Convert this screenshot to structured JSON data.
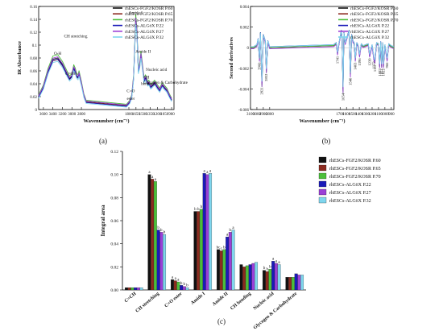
{
  "colors": {
    "P60": "#111111",
    "P65": "#8b2a1f",
    "P70": "#4bbf3a",
    "AP22": "#1a1ab8",
    "AP27": "#9b3fd6",
    "AP32": "#7fd6ee"
  },
  "chart_data": [
    {
      "panel": "(a)",
      "type": "line",
      "xlabel": "Wavenumber (cm⁻¹)",
      "ylabel": "IR Absorbance",
      "xlim": [
        3700,
        850
      ],
      "ylim": [
        0,
        0.16
      ],
      "x_ticks": [
        3600,
        3400,
        3200,
        3000,
        2800,
        1800,
        1650,
        1500,
        1350,
        1200,
        1050,
        900
      ],
      "y_ticks": [
        0,
        0.02,
        0.04,
        0.06,
        0.08,
        0.1,
        0.12,
        0.14,
        0.16
      ],
      "y_tick_labels": [
        "0",
        "0.02",
        "0.04",
        "0.06",
        "0.08",
        "0.1",
        "0.12",
        "0.14",
        "0.16"
      ],
      "legend": [
        "rhESCs-FGF2/KOSR P.60",
        "rhESCs-FGF2/KOSR P.65",
        "rhESCs-FGF2/KOSR P.70",
        "rhESCs-ALGöX P.22",
        "rhESCs-ALGöX P.27",
        "rhESCs-ALGöX P.32"
      ],
      "annotations": [
        {
          "text": "O-H",
          "x": 3300,
          "y": 0.085
        },
        {
          "text": "CH stretching",
          "x": 2920,
          "y": 0.112
        },
        {
          "text": "C=OH",
          "x": 3020,
          "y": 0.054
        },
        {
          "text": "C=O",
          "x": 1760,
          "y": 0.027
        },
        {
          "text": "ester",
          "x": 1760,
          "y": 0.015
        },
        {
          "text": "Amide I",
          "x": 1660,
          "y": 0.148
        },
        {
          "text": "Amide II",
          "x": 1500,
          "y": 0.088
        },
        {
          "text": "CH",
          "x": 1430,
          "y": 0.048
        },
        {
          "text": "bending",
          "x": 1400,
          "y": 0.038
        },
        {
          "text": "Nucleic acid",
          "x": 1220,
          "y": 0.06
        },
        {
          "text": "Glycogen & Carbohydrate",
          "x": 1030,
          "y": 0.04
        }
      ],
      "series_shape": {
        "x": [
          3700,
          3600,
          3500,
          3400,
          3300,
          3200,
          3100,
          3050,
          3000,
          2960,
          2930,
          2900,
          2870,
          2850,
          2800,
          2750,
          2700,
          1850,
          1780,
          1740,
          1700,
          1680,
          1655,
          1630,
          1600,
          1570,
          1545,
          1520,
          1480,
          1450,
          1400,
          1380,
          1340,
          1300,
          1260,
          1240,
          1200,
          1150,
          1100,
          1080,
          1050,
          1000,
          950,
          900
        ],
        "y": [
          0.02,
          0.035,
          0.06,
          0.078,
          0.08,
          0.07,
          0.055,
          0.048,
          0.052,
          0.065,
          0.06,
          0.052,
          0.05,
          0.056,
          0.04,
          0.022,
          0.012,
          0.006,
          0.012,
          0.02,
          0.05,
          0.09,
          0.14,
          0.12,
          0.06,
          0.07,
          0.085,
          0.07,
          0.045,
          0.05,
          0.04,
          0.042,
          0.035,
          0.038,
          0.042,
          0.04,
          0.035,
          0.03,
          0.038,
          0.037,
          0.034,
          0.03,
          0.022,
          0.015
        ]
      }
    },
    {
      "panel": "(b)",
      "type": "line",
      "xlabel": "Wavenumber (cm⁻¹)",
      "ylabel": "Second derivatives",
      "xlim": [
        3100,
        860
      ],
      "ylim": [
        -0.006,
        0.004
      ],
      "x_ticks": [
        3100,
        3000,
        2900,
        2800,
        1700,
        1600,
        1500,
        1400,
        1300,
        1200,
        1100,
        1000,
        900
      ],
      "y_ticks": [
        -0.006,
        -0.004,
        -0.002,
        0,
        0.002,
        0.004
      ],
      "y_tick_labels": [
        "-0.006",
        "-0.004",
        "-0.002",
        "0",
        "0.002",
        "0.004"
      ],
      "legend": [
        "rhESCs-FGF2/KOSR P.60",
        "rhESCs-FGF2/KOSR P.65",
        "rhESCs-FGF2/KOSR P.70",
        "rhESCs-ALGöX P.22",
        "rhESCs-ALGöX P.27",
        "rhESCs-ALGöX P.32"
      ],
      "peak_labels": [
        {
          "text": "2960",
          "x": 2960,
          "y": -0.0012
        },
        {
          "text": "2921",
          "x": 2921,
          "y": -0.0036
        },
        {
          "text": "2852",
          "x": 2852,
          "y": -0.0023
        },
        {
          "text": "1741",
          "x": 1741,
          "y": -0.0006
        },
        {
          "text": "1654",
          "x": 1654,
          "y": -0.0042
        },
        {
          "text": "1540",
          "x": 1540,
          "y": -0.0027
        },
        {
          "text": "1463",
          "x": 1463,
          "y": -0.0012
        },
        {
          "text": "1396",
          "x": 1396,
          "y": -0.0008
        },
        {
          "text": "1239",
          "x": 1239,
          "y": -0.0008
        },
        {
          "text": "1172",
          "x": 1172,
          "y": -0.0011
        },
        {
          "text": "1157",
          "x": 1157,
          "y": -0.0014
        },
        {
          "text": "1083",
          "x": 1083,
          "y": -0.0018
        },
        {
          "text": "1051",
          "x": 1051,
          "y": -0.0018
        },
        {
          "text": "1022",
          "x": 1022,
          "y": -0.0018
        },
        {
          "text": "966",
          "x": 966,
          "y": -0.0012
        }
      ],
      "series_shape": {
        "x": [
          3100,
          3050,
          3000,
          2980,
          2960,
          2945,
          2921,
          2900,
          2870,
          2852,
          2830,
          2800,
          1800,
          1760,
          1741,
          1720,
          1700,
          1680,
          1670,
          1654,
          1640,
          1620,
          1600,
          1560,
          1540,
          1520,
          1500,
          1480,
          1463,
          1440,
          1420,
          1396,
          1370,
          1340,
          1300,
          1260,
          1239,
          1200,
          1172,
          1157,
          1130,
          1100,
          1083,
          1065,
          1051,
          1035,
          1022,
          1000,
          966,
          940,
          900,
          860
        ],
        "y": [
          0,
          0,
          0.0002,
          0.0008,
          -0.0012,
          0.0014,
          -0.0036,
          0.0012,
          0.0006,
          -0.0023,
          0.0006,
          0,
          0.0002,
          0.0004,
          -0.0006,
          0.0003,
          0.001,
          0.0016,
          0.001,
          -0.0042,
          0.0014,
          0.0004,
          0.0008,
          0.0016,
          -0.0027,
          0.0012,
          0.0006,
          0.0004,
          -0.0012,
          0.0004,
          0.0002,
          -0.0008,
          0.0003,
          0.0001,
          0.0002,
          0.0003,
          -0.0008,
          0.0002,
          -0.0011,
          -0.0014,
          0.0004,
          0.0003,
          -0.0018,
          0.0005,
          -0.0018,
          0.0004,
          -0.0018,
          0.0002,
          -0.0012,
          0.0003,
          0.0001,
          0
        ]
      }
    },
    {
      "panel": "(c)",
      "type": "bar",
      "ylabel": "Integral area",
      "ylim": [
        0,
        0.12
      ],
      "y_ticks": [
        0,
        0.02,
        0.04,
        0.06,
        0.08,
        0.1,
        0.12
      ],
      "y_tick_labels": [
        "0.00",
        "0.02",
        "0.04",
        "0.06",
        "0.08",
        "0.10",
        "0.12"
      ],
      "categories": [
        "C=CH",
        "CH stretching",
        "C=O ester",
        "Amide I",
        "Amide II",
        "CH bending",
        "Nucleic acid",
        "Glycogen & Carbohydrate"
      ],
      "series": [
        {
          "name": "rhESCs-FGF2/KOSR P.60",
          "color_key": "P60",
          "values": [
            0.002,
            0.1,
            0.009,
            0.068,
            0.035,
            0.022,
            0.017,
            0.011
          ]
        },
        {
          "name": "rhESCs-FGF2/KOSR P.65",
          "color_key": "P65",
          "values": [
            0.002,
            0.096,
            0.008,
            0.068,
            0.034,
            0.02,
            0.016,
            0.011
          ]
        },
        {
          "name": "rhESCs-FGF2/KOSR P.70",
          "color_key": "P70",
          "values": [
            0.002,
            0.094,
            0.007,
            0.07,
            0.035,
            0.021,
            0.018,
            0.011
          ]
        },
        {
          "name": "rhESCs-ALGöX P.22",
          "color_key": "AP22",
          "values": [
            0.002,
            0.052,
            0.004,
            0.101,
            0.046,
            0.022,
            0.025,
            0.014
          ]
        },
        {
          "name": "rhESCs-ALGöX P.27",
          "color_key": "AP27",
          "values": [
            0.002,
            0.05,
            0.003,
            0.1,
            0.05,
            0.023,
            0.023,
            0.013
          ]
        },
        {
          "name": "rhESCs-ALGöX P.32",
          "color_key": "AP32",
          "values": [
            0.002,
            0.048,
            0.002,
            0.101,
            0.052,
            0.024,
            0.022,
            0.013
          ]
        }
      ],
      "letters": [
        {
          "category": "CH stretching",
          "texts": [
            "a",
            "a",
            "a",
            "b",
            "b",
            "b"
          ]
        },
        {
          "category": "C=O ester",
          "texts": [
            "a",
            "a",
            "a",
            "b",
            "b",
            "b"
          ]
        },
        {
          "category": "Amide I",
          "texts": [
            "b",
            "b",
            "b",
            "a",
            "a",
            "a"
          ]
        },
        {
          "category": "Amide II",
          "texts": [
            "bc",
            "c",
            "b",
            "a",
            "b",
            "a"
          ]
        },
        {
          "category": "Nucleic acid",
          "texts": [
            "b",
            "b",
            "b",
            "a",
            "a",
            "a"
          ]
        }
      ]
    }
  ]
}
